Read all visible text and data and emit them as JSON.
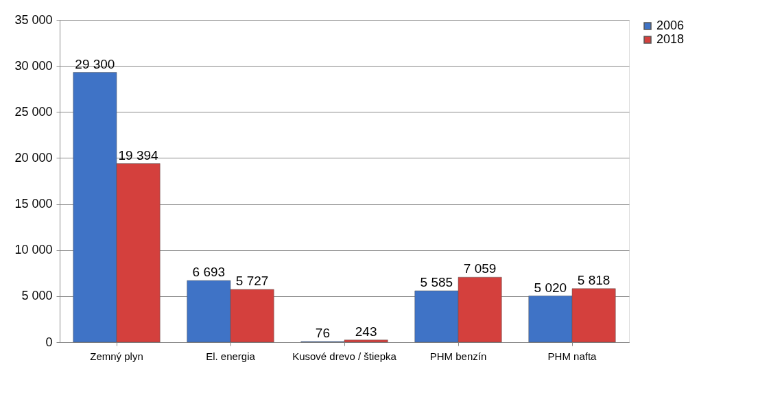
{
  "chart_data": {
    "type": "bar",
    "categories": [
      "Zemný plyn",
      "El. energia",
      "Kusové drevo / štiepka",
      "PHM benzín",
      "PHM nafta"
    ],
    "series": [
      {
        "name": "2006",
        "color": "#3f73c6",
        "values": [
          29300,
          6693,
          76,
          5585,
          5020
        ],
        "value_labels": [
          "29 300",
          "6 693",
          "76",
          "5 585",
          "5 020"
        ]
      },
      {
        "name": "2018",
        "color": "#d4403d",
        "values": [
          19394,
          5727,
          243,
          7059,
          5818
        ],
        "value_labels": [
          "19 394",
          "5 727",
          "243",
          "7 059",
          "5 818"
        ]
      }
    ],
    "ylim": [
      0,
      35000
    ],
    "yticks": [
      {
        "value": 0,
        "label": "0"
      },
      {
        "value": 5000,
        "label": "5 000"
      },
      {
        "value": 10000,
        "label": "10 000"
      },
      {
        "value": 15000,
        "label": "15 000"
      },
      {
        "value": 20000,
        "label": "20 000"
      },
      {
        "value": 25000,
        "label": "25 000"
      },
      {
        "value": 30000,
        "label": "30 000"
      },
      {
        "value": 35000,
        "label": "35 000"
      }
    ],
    "grid": "y",
    "legend": "right"
  }
}
